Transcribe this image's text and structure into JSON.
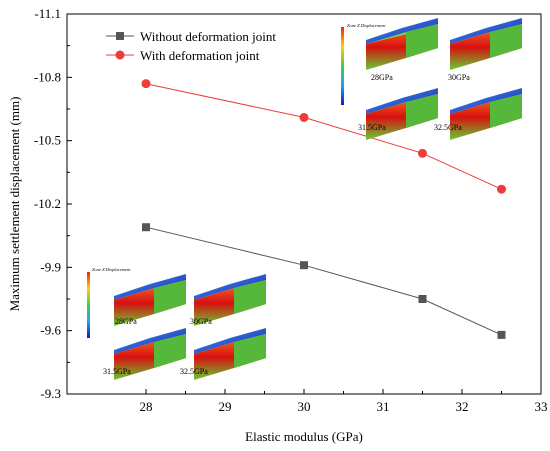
{
  "chart_data": {
    "type": "line",
    "xlabel": "Elastic modulus (GPa)",
    "ylabel": "Maximum settlement displacement (mm)",
    "xlim": [
      27,
      33
    ],
    "ylim": [
      -9.3,
      -11.1
    ],
    "x_ticks": [
      28,
      29,
      30,
      31,
      32,
      33
    ],
    "y_ticks": [
      -9.3,
      -9.6,
      -9.9,
      -10.2,
      -10.5,
      -10.8,
      -11.1
    ],
    "y_axis_inverted": true,
    "grid": false,
    "legend_position": "top-left",
    "series": [
      {
        "name": "Without deformation joint",
        "color": "#555555",
        "marker": "square",
        "x": [
          28,
          30,
          31.5,
          32.5
        ],
        "y": [
          -10.09,
          -9.91,
          -9.75,
          -9.58
        ]
      },
      {
        "name": "With deformation joint",
        "color": "#ee3b3b",
        "marker": "circle",
        "x": [
          28,
          30,
          31.5,
          32.5
        ],
        "y": [
          -10.77,
          -10.61,
          -10.44,
          -10.27
        ]
      }
    ],
    "insets": [
      {
        "title": "Zone Z Displacement",
        "labels": [
          "28GPa",
          "30GPa",
          "31.5GPa",
          "32.5GPa"
        ]
      },
      {
        "title": "Zone Z Displacement",
        "labels": [
          "28GPa",
          "30GPa",
          "31.5GPa",
          "32.5GPa"
        ]
      }
    ]
  }
}
